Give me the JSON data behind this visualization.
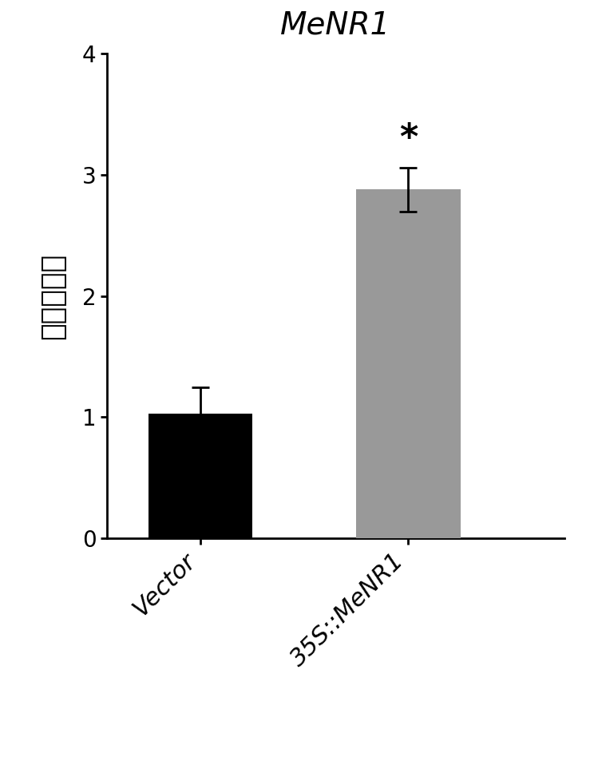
{
  "title": "MeNR1",
  "title_style": "italic",
  "title_fontsize": 28,
  "categories": [
    "Vector",
    "35S::MeNR1"
  ],
  "values": [
    1.03,
    2.88
  ],
  "errors": [
    0.22,
    0.18
  ],
  "bar_colors": [
    "#000000",
    "#999999"
  ],
  "bar_width": 0.5,
  "ylabel": "相对表达量",
  "ylabel_fontsize": 26,
  "ylim": [
    0,
    4
  ],
  "yticks": [
    0,
    1,
    2,
    3,
    4
  ],
  "ytick_fontsize": 20,
  "xtick_fontsize": 22,
  "significance_label": "*",
  "significance_fontsize": 32,
  "bar_positions": [
    1,
    2
  ],
  "figsize": [
    7.44,
    9.63
  ],
  "dpi": 100,
  "background_color": "#ffffff",
  "spine_linewidth": 2.0,
  "error_capsize": 8,
  "error_linewidth": 2.0,
  "error_color": "#000000"
}
